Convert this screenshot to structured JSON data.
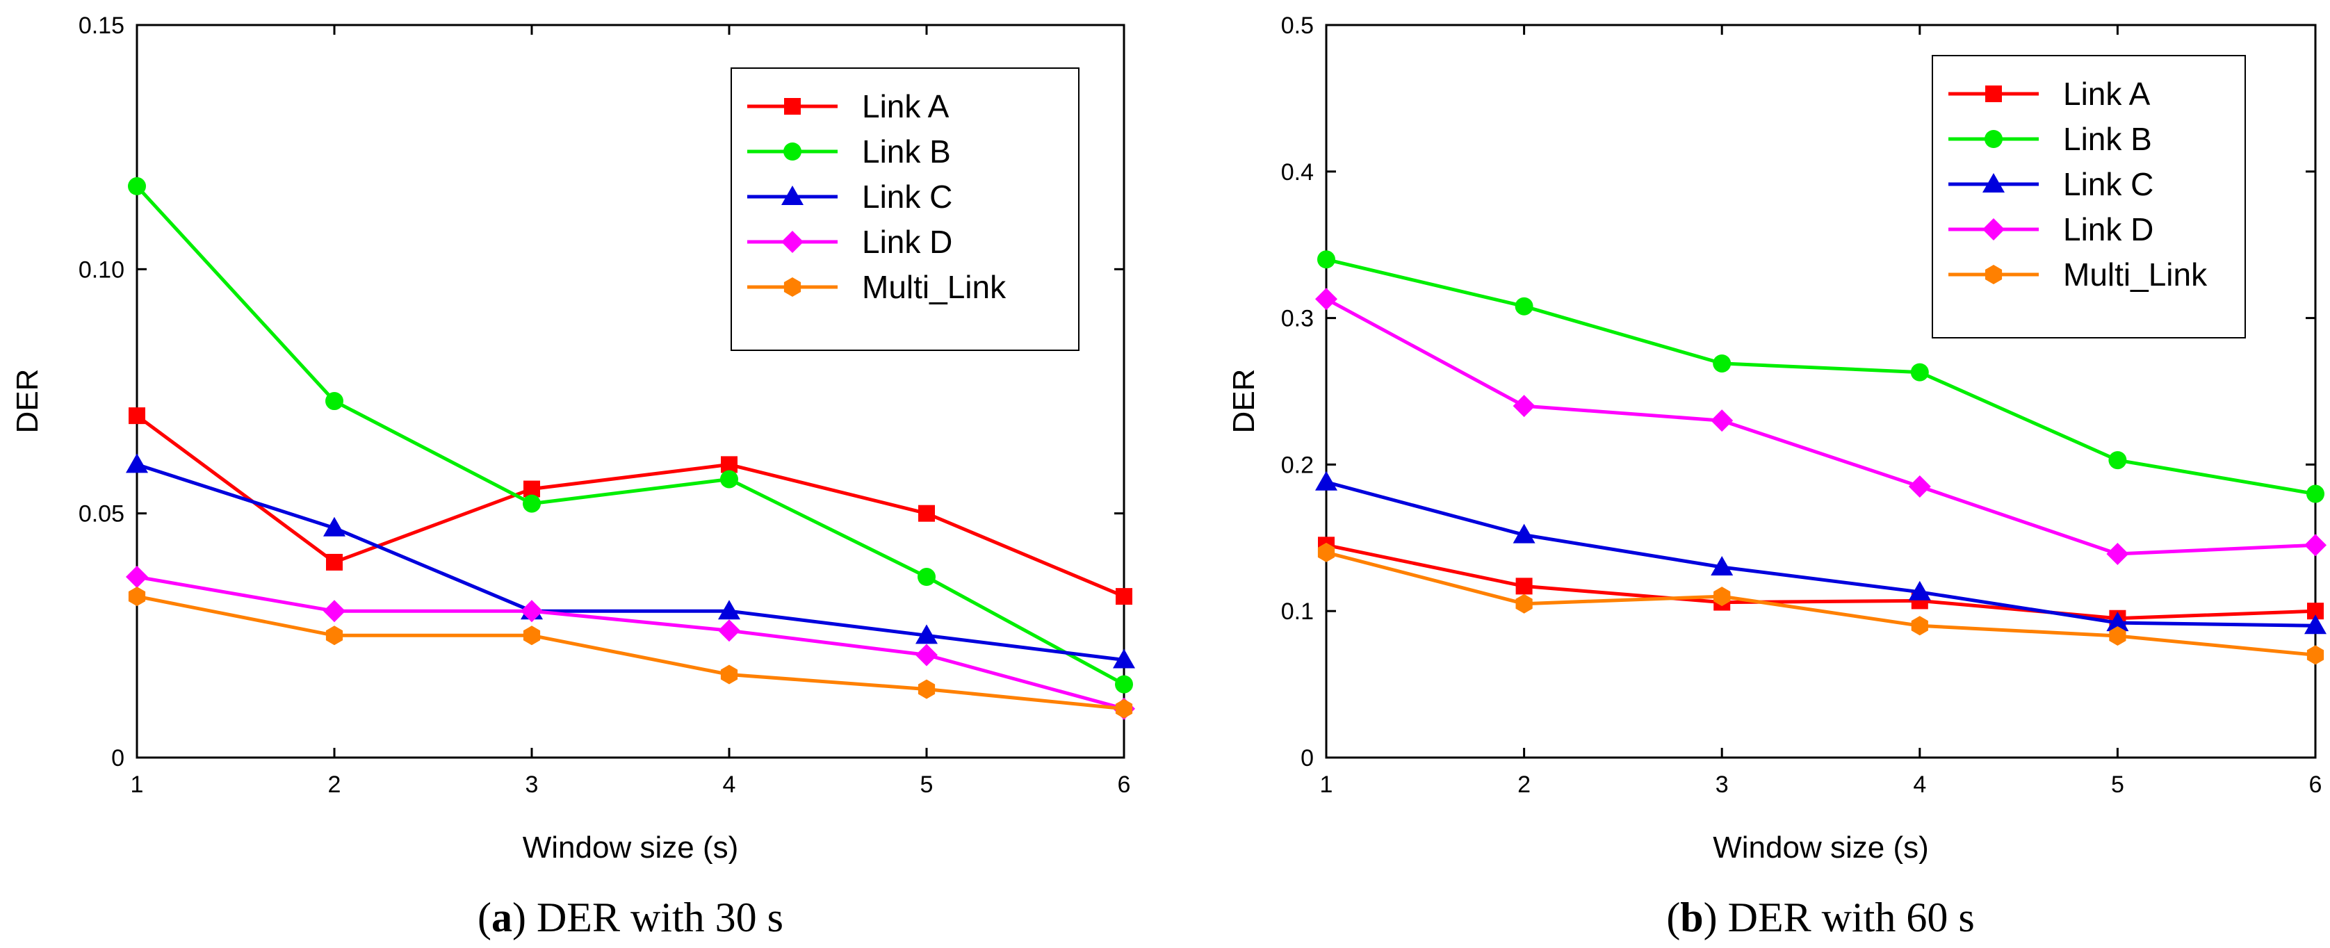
{
  "chart_data": [
    {
      "type": "line",
      "caption_letter": "a",
      "caption_text": "DER with 30 s",
      "xlabel": "Window size (s)",
      "ylabel": "DER",
      "x": [
        1,
        2,
        3,
        4,
        5,
        6
      ],
      "xlim": [
        1,
        6
      ],
      "ylim": [
        0,
        0.15
      ],
      "xticks": [
        "1",
        "2",
        "3",
        "4",
        "5",
        "6"
      ],
      "yticks": [
        0,
        0.05,
        0.1,
        0.15
      ],
      "ytick_labels": [
        "0",
        "0.05",
        "0.10",
        "0.15"
      ],
      "legend": "top-right",
      "series": [
        {
          "name": "Link A",
          "color": "#ff0000",
          "marker": "square",
          "values": [
            0.07,
            0.04,
            0.055,
            0.06,
            0.05,
            0.033
          ]
        },
        {
          "name": "Link B",
          "color": "#00ee00",
          "marker": "circle",
          "values": [
            0.117,
            0.073,
            0.052,
            0.057,
            0.037,
            0.015
          ]
        },
        {
          "name": "Link C",
          "color": "#0000dd",
          "marker": "triangle",
          "values": [
            0.06,
            0.047,
            0.03,
            0.03,
            0.025,
            0.02
          ]
        },
        {
          "name": "Link D",
          "color": "#ff00ff",
          "marker": "diamond",
          "values": [
            0.037,
            0.03,
            0.03,
            0.026,
            0.021,
            0.01
          ]
        },
        {
          "name": "Multi_Link",
          "color": "#ff8000",
          "marker": "hexagon",
          "values": [
            0.033,
            0.025,
            0.025,
            0.017,
            0.014,
            0.01
          ]
        }
      ]
    },
    {
      "type": "line",
      "caption_letter": "b",
      "caption_text": "DER with 60 s",
      "xlabel": "Window size (s)",
      "ylabel": "DER",
      "x": [
        1,
        2,
        3,
        4,
        5,
        6
      ],
      "xlim": [
        1,
        6
      ],
      "ylim": [
        0,
        0.5
      ],
      "xticks": [
        "1",
        "2",
        "3",
        "4",
        "5",
        "6"
      ],
      "yticks": [
        0,
        0.1,
        0.2,
        0.3,
        0.4,
        0.5
      ],
      "ytick_labels": [
        "0",
        "0.1",
        "0.2",
        "0.3",
        "0.4",
        "0.5"
      ],
      "legend": "top-right",
      "series": [
        {
          "name": "Link A",
          "color": "#ff0000",
          "marker": "square",
          "values": [
            0.145,
            0.117,
            0.106,
            0.107,
            0.095,
            0.1
          ]
        },
        {
          "name": "Link B",
          "color": "#00ee00",
          "marker": "circle",
          "values": [
            0.34,
            0.308,
            0.269,
            0.263,
            0.203,
            0.18
          ]
        },
        {
          "name": "Link C",
          "color": "#0000dd",
          "marker": "triangle",
          "values": [
            0.188,
            0.152,
            0.13,
            0.113,
            0.092,
            0.09
          ]
        },
        {
          "name": "Link D",
          "color": "#ff00ff",
          "marker": "diamond",
          "values": [
            0.313,
            0.24,
            0.23,
            0.185,
            0.139,
            0.145
          ]
        },
        {
          "name": "Multi_Link",
          "color": "#ff8000",
          "marker": "hexagon",
          "values": [
            0.14,
            0.105,
            0.11,
            0.09,
            0.083,
            0.07
          ]
        }
      ]
    }
  ]
}
